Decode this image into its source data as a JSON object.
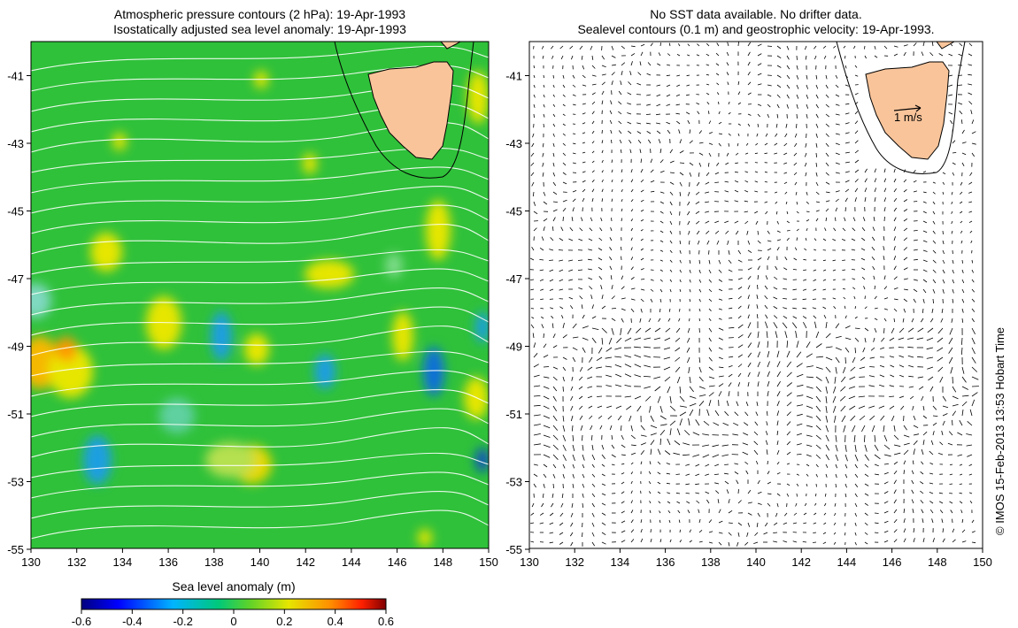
{
  "left_panel": {
    "title_line1": "Atmospheric pressure contours (2 hPa): 19-Apr-1993",
    "title_line2": "Isostatically adjusted sea level anomaly: 19-Apr-1993",
    "x_ticks": [
      "130",
      "132",
      "134",
      "136",
      "138",
      "140",
      "142",
      "144",
      "146",
      "148",
      "150"
    ],
    "y_ticks": [
      "-41",
      "-43",
      "-45",
      "-47",
      "-49",
      "-51",
      "-53",
      "-55"
    ]
  },
  "right_panel": {
    "title_line1": "No SST data available.  No drifter data.",
    "title_line2": "Sealevel contours (0.1 m) and geostrophic velocity: 19-Apr-1993.",
    "x_ticks": [
      "130",
      "132",
      "134",
      "136",
      "138",
      "140",
      "142",
      "144",
      "146",
      "148",
      "150"
    ],
    "y_ticks": [
      "-41",
      "-43",
      "-45",
      "-47",
      "-49",
      "-51",
      "-53",
      "-55"
    ],
    "scale_label": "1 m/s"
  },
  "colorbar": {
    "title": "Sea level anomaly (m)",
    "ticks": [
      "-0.6",
      "-0.4",
      "-0.2",
      "0",
      "0.2",
      "0.4",
      "0.6"
    ],
    "range": [
      -0.6,
      0.6
    ]
  },
  "copyright": "© IMOS 15-Feb-2013 13:53 Hobart Time",
  "colors": {
    "ocean_base": "#2fc13a",
    "land": "#f9c49a",
    "pressure_contour": "#ffffff",
    "positive_anomaly": "#e6e600",
    "negative_anomaly": "#1e9fe0"
  }
}
